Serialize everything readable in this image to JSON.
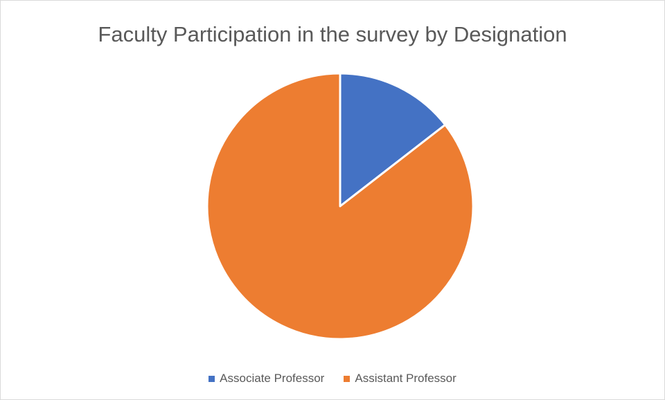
{
  "chart_data": {
    "type": "pie",
    "title": "Faculty Participation in the survey by Designation",
    "categories": [
      "Associate Professor",
      "Assistant Professor"
    ],
    "values": [
      14.5,
      85.5
    ],
    "colors": [
      "#4472C4",
      "#ED7D31"
    ],
    "start_angle_deg": 0,
    "direction": "clockwise",
    "legend_position": "bottom"
  }
}
